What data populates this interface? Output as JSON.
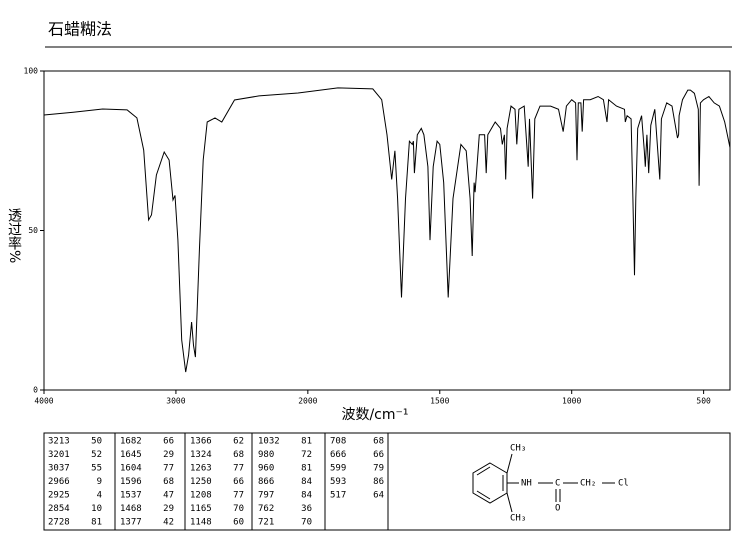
{
  "chart_data": {
    "type": "line",
    "title": "石蜡糊法",
    "y_label": "透过率%",
    "x_label": "波数/cm⁻¹",
    "xlim": [
      4000,
      400
    ],
    "x_scale_change": {
      "at": 2000,
      "factor": 2
    },
    "xticks": [
      4000,
      3000,
      2000,
      1500,
      1000,
      500
    ],
    "ylim": [
      0,
      100
    ],
    "yticks": [
      0,
      50,
      100
    ],
    "color": "#000000",
    "x": [
      4000,
      3778,
      3556,
      3370,
      3296,
      3244,
      3207,
      3185,
      3148,
      3089,
      3052,
      3022,
      3007,
      2985,
      2956,
      2926,
      2904,
      2881,
      2867,
      2852,
      2822,
      2793,
      2763,
      2704,
      2652,
      2556,
      2370,
      2074,
      1886,
      1754,
      1720,
      1700,
      1682,
      1670,
      1660,
      1645,
      1630,
      1615,
      1604,
      1600,
      1596,
      1585,
      1570,
      1560,
      1545,
      1537,
      1525,
      1510,
      1500,
      1485,
      1468,
      1450,
      1420,
      1400,
      1385,
      1377,
      1370,
      1366,
      1350,
      1330,
      1324,
      1318,
      1290,
      1270,
      1263,
      1255,
      1250,
      1245,
      1230,
      1215,
      1208,
      1200,
      1180,
      1165,
      1160,
      1148,
      1140,
      1120,
      1080,
      1050,
      1032,
      1020,
      1000,
      985,
      980,
      975,
      965,
      960,
      955,
      930,
      900,
      880,
      866,
      860,
      830,
      800,
      797,
      790,
      775,
      768,
      762,
      757,
      750,
      735,
      725,
      721,
      715,
      708,
      700,
      685,
      666,
      660,
      640,
      620,
      599,
      595,
      593,
      580,
      560,
      550,
      535,
      520,
      517,
      512,
      500,
      480,
      460,
      440,
      420,
      400
    ],
    "values": [
      86.2,
      87.1,
      88.1,
      87.8,
      85.3,
      75.2,
      53.3,
      54.9,
      67.4,
      74.6,
      72.1,
      59.6,
      61,
      47,
      15.7,
      5.6,
      11,
      21.3,
      14,
      10.3,
      43.9,
      72.1,
      84,
      85.3,
      84,
      90.9,
      92.2,
      93.1,
      94.7,
      94.4,
      91,
      80,
      66,
      75,
      60,
      29,
      60,
      78,
      77,
      78,
      68,
      80,
      82,
      80,
      70,
      47,
      70,
      78,
      77,
      65,
      29,
      60,
      77,
      75,
      60,
      42,
      65,
      62,
      80,
      80,
      68,
      80,
      84,
      82,
      77,
      80,
      66,
      82,
      89,
      88,
      77,
      88,
      89,
      70,
      85,
      60,
      85,
      89,
      89,
      88,
      81,
      89,
      91,
      90,
      72,
      90,
      90,
      81,
      91,
      91,
      92,
      91,
      84,
      91,
      89,
      88,
      84,
      86,
      85,
      60,
      36,
      60,
      82,
      86,
      75,
      70,
      80,
      68,
      83,
      88,
      66,
      85,
      90,
      89,
      79,
      80,
      86,
      91,
      94,
      94,
      93,
      88,
      64,
      90,
      91,
      92,
      90,
      89,
      84,
      76
    ]
  },
  "peak_table": [
    [
      3213,
      50
    ],
    [
      3201,
      52
    ],
    [
      3037,
      55
    ],
    [
      2966,
      9
    ],
    [
      2925,
      4
    ],
    [
      2854,
      10
    ],
    [
      2728,
      81
    ],
    [
      1682,
      66
    ],
    [
      1645,
      29
    ],
    [
      1604,
      77
    ],
    [
      1596,
      68
    ],
    [
      1537,
      47
    ],
    [
      1468,
      29
    ],
    [
      1377,
      42
    ],
    [
      1366,
      62
    ],
    [
      1324,
      68
    ],
    [
      1263,
      77
    ],
    [
      1250,
      66
    ],
    [
      1208,
      77
    ],
    [
      1165,
      70
    ],
    [
      1148,
      60
    ],
    [
      1032,
      81
    ],
    [
      980,
      72
    ],
    [
      960,
      81
    ],
    [
      866,
      84
    ],
    [
      797,
      84
    ],
    [
      762,
      36
    ],
    [
      721,
      70
    ],
    [
      708,
      68
    ],
    [
      666,
      66
    ],
    [
      599,
      79
    ],
    [
      593,
      86
    ],
    [
      517,
      64
    ]
  ],
  "structure": {
    "labels": [
      "CH₃",
      "NH",
      "C",
      "CH₂",
      "Cl",
      "O",
      "CH₃"
    ]
  }
}
